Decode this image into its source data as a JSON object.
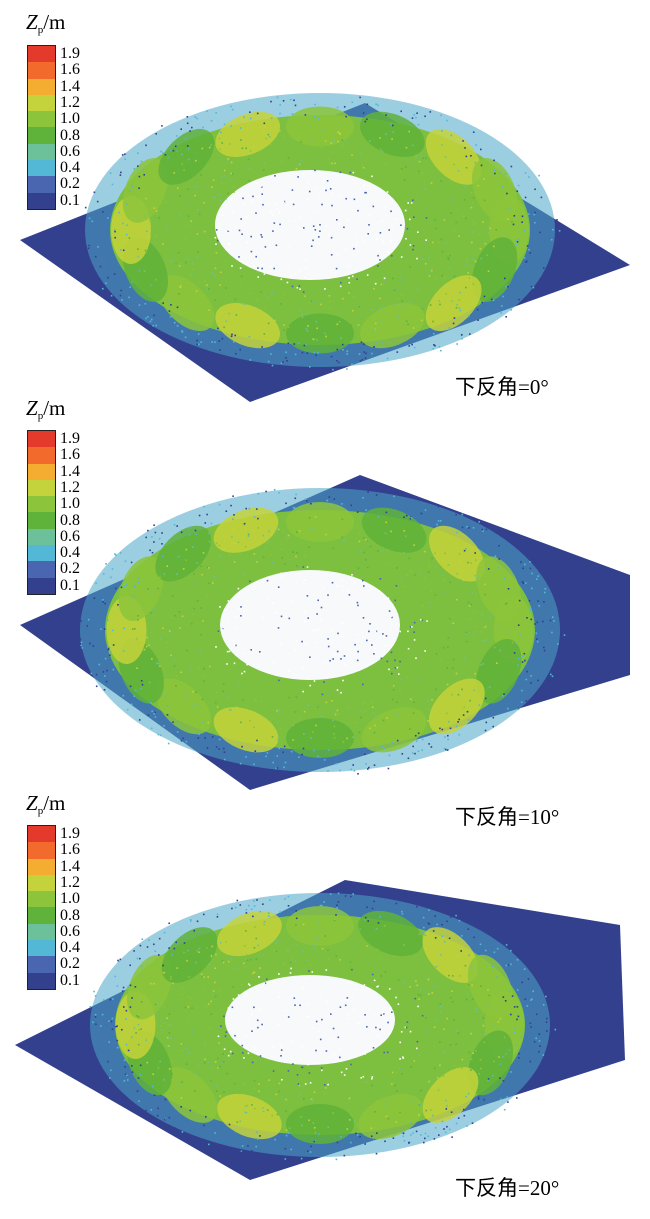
{
  "colorbar": {
    "title_symbol": "Z",
    "title_subscript": "p",
    "title_unit": "/m",
    "levels": [
      "1.9",
      "1.6",
      "1.4",
      "1.2",
      "1.0",
      "0.8",
      "0.6",
      "0.4",
      "0.2",
      "0.1"
    ],
    "colors": [
      "#e43a2c",
      "#f26a2c",
      "#f5ad31",
      "#c4d23b",
      "#8cc43b",
      "#5fb23a",
      "#6cc19a",
      "#53b7d6",
      "#4a66b0",
      "#33408e"
    ]
  },
  "panels": [
    {
      "caption": "下反角=0°"
    },
    {
      "caption": "下反角=10°"
    },
    {
      "caption": "下反角=20°"
    }
  ]
}
